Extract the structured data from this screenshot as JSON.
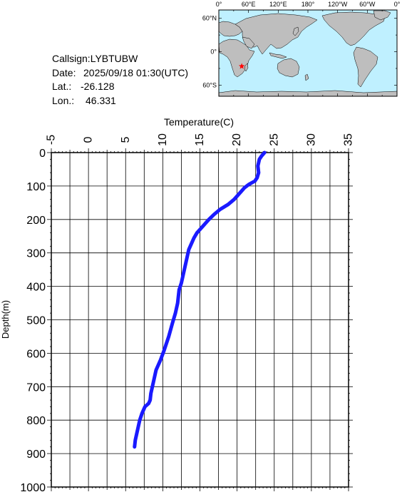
{
  "station": {
    "callsign_label": "Callsign:",
    "callsign": "LYBTUBW",
    "date_label": "Date:",
    "date": "2025/09/18 01:30(UTC)",
    "lat_label": "Lat.:",
    "lat": "-26.128",
    "lon_label": "Lon.:",
    "lon": "46.331"
  },
  "map": {
    "top_labels": [
      "0°",
      "60°E",
      "120°E",
      "180°",
      "120°W",
      "60°W",
      "0°"
    ],
    "left_labels": [
      "60°N",
      "0°",
      "60°S"
    ],
    "ocean_color": "#bff0ff",
    "land_color": "#bebebe",
    "marker_color": "#ff0000",
    "marker_icon": "star-icon",
    "marker_lon": 46.331,
    "marker_lat": -26.128
  },
  "chart_data": {
    "type": "line",
    "xlabel": "Temperature(C)",
    "ylabel": "Depth(m)",
    "xlim": [
      -5,
      35
    ],
    "ylim": [
      0,
      1000
    ],
    "x_ticks": [
      "-5",
      "0",
      "5",
      "10",
      "15",
      "20",
      "25",
      "30",
      "35"
    ],
    "y_ticks": [
      "0",
      "100",
      "200",
      "300",
      "400",
      "500",
      "600",
      "700",
      "800",
      "900",
      "1000"
    ],
    "y_inverted": true,
    "grid": true,
    "line_color": "#1a1aff",
    "series": [
      {
        "temperature": [
          23.7,
          23.3,
          23.0,
          22.8,
          22.9,
          22.7,
          22.4,
          21.6,
          21.0,
          20.4,
          19.6,
          18.8,
          17.7,
          16.9,
          16.2,
          15.8,
          15.4,
          15.0,
          14.6,
          14.2,
          13.9,
          13.5,
          13.3,
          13.1,
          12.9,
          12.7,
          12.5,
          12.2,
          12.0,
          11.7,
          11.3,
          10.8,
          10.2,
          9.7,
          9.1,
          8.8,
          8.6,
          8.4,
          8.3,
          8.1,
          7.6,
          7.2,
          6.9,
          6.7,
          6.5,
          6.3,
          6.2
        ],
        "depth": [
          0,
          10,
          20,
          40,
          60,
          75,
          85,
          95,
          105,
          120,
          140,
          155,
          170,
          185,
          200,
          210,
          220,
          230,
          240,
          255,
          270,
          290,
          310,
          330,
          350,
          370,
          390,
          410,
          450,
          480,
          510,
          550,
          590,
          620,
          650,
          680,
          700,
          720,
          740,
          750,
          760,
          780,
          800,
          820,
          840,
          860,
          880
        ]
      }
    ]
  }
}
